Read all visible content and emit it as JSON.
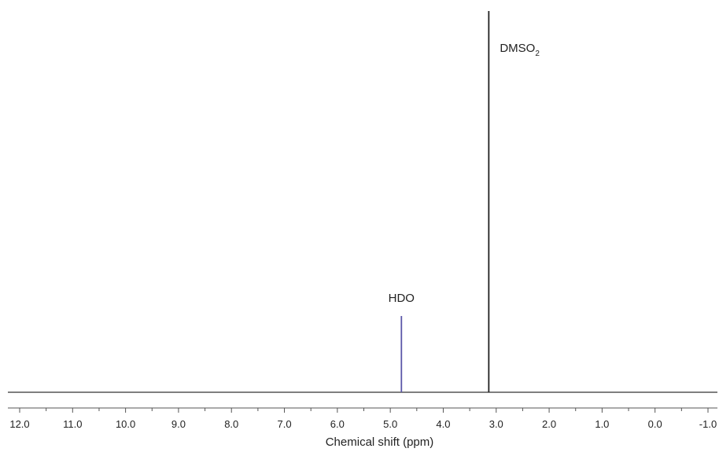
{
  "chart_data": {
    "type": "line",
    "title": "",
    "xlabel": "Chemical shift (ppm)",
    "ylabel": "",
    "x_reversed": true,
    "xlim": [
      12.0,
      -1.0
    ],
    "ylim": [
      0,
      1.0
    ],
    "grid": false,
    "legend": "none",
    "ticks": {
      "major": [
        12.0,
        11.0,
        10.0,
        9.0,
        8.0,
        7.0,
        6.0,
        5.0,
        4.0,
        3.0,
        2.0,
        1.0,
        0.0,
        -1.0
      ],
      "major_labels": [
        "12.0",
        "11.0",
        "10.0",
        "9.0",
        "8.0",
        "7.0",
        "6.0",
        "5.0",
        "4.0",
        "3.0",
        "2.0",
        "1.0",
        "0.0",
        "-1.0"
      ],
      "minor_step": 0.5
    },
    "peaks": [
      {
        "label": "HDO",
        "label_sub": "",
        "shift": 4.79,
        "intensity": 0.2,
        "color": "#5b57a8"
      },
      {
        "label": "DMSO",
        "label_sub": "2",
        "shift": 3.14,
        "intensity": 1.0,
        "color": "#222222"
      }
    ],
    "baseline_color": "#333333"
  }
}
